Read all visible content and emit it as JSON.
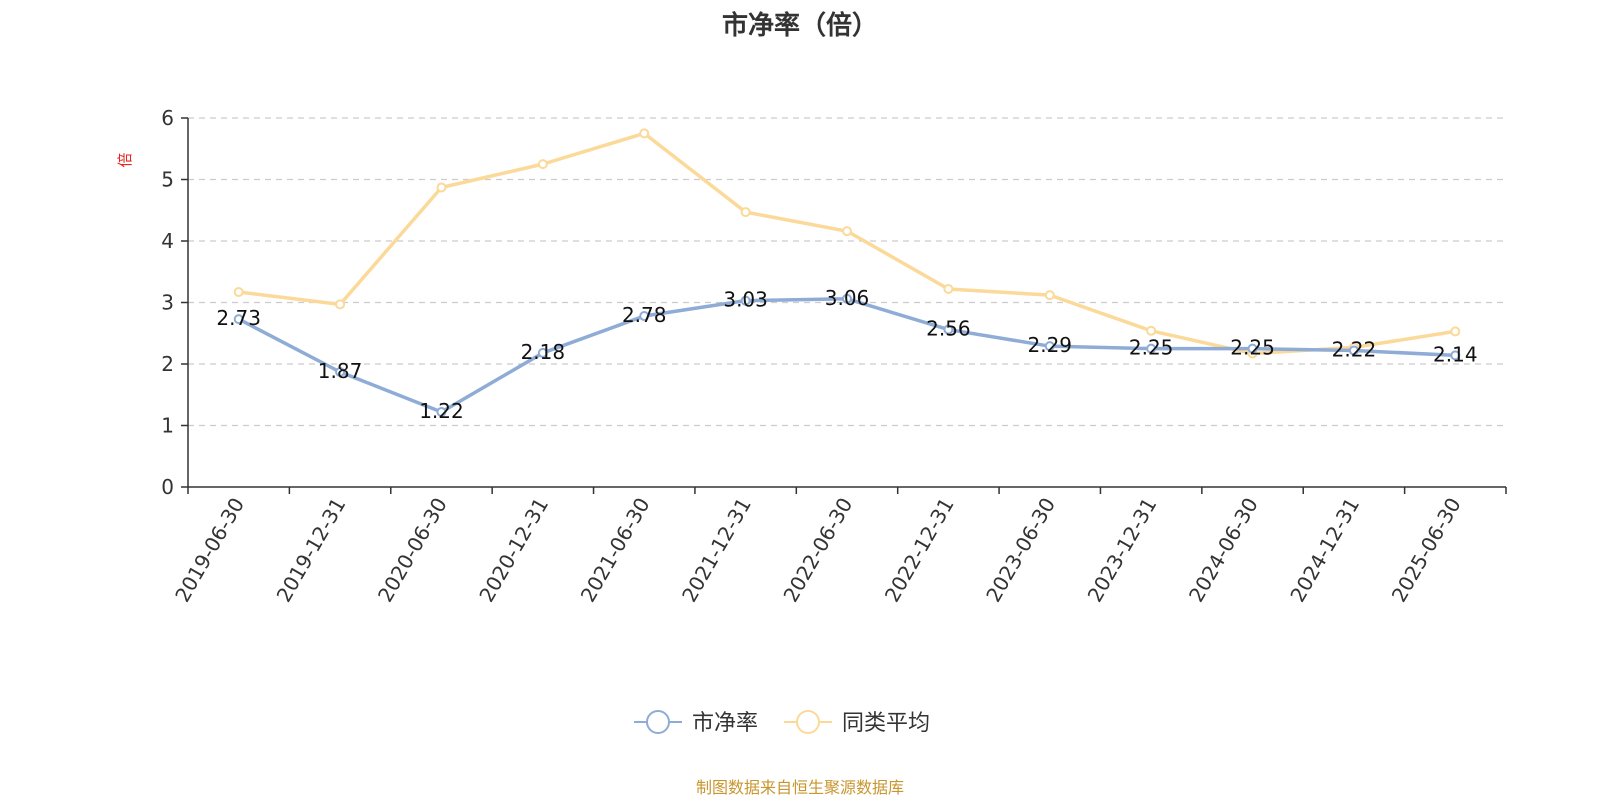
{
  "chart_data": {
    "type": "line",
    "title": "市净率（倍）",
    "ylabel": "倍",
    "ylim": [
      0,
      6
    ],
    "yticks": [
      0,
      1,
      2,
      3,
      4,
      5,
      6
    ],
    "grid": true,
    "legend_position": "bottom-center",
    "categories": [
      "2019-06-30",
      "2019-12-31",
      "2020-06-30",
      "2020-12-31",
      "2021-06-30",
      "2021-12-31",
      "2022-06-30",
      "2022-12-31",
      "2023-06-30",
      "2023-12-31",
      "2024-06-30",
      "2024-12-31",
      "2025-06-30"
    ],
    "series": [
      {
        "name": "市净率",
        "color": "#8eacd6",
        "show_labels": true,
        "values": [
          2.73,
          1.87,
          1.22,
          2.18,
          2.78,
          3.03,
          3.06,
          2.56,
          2.29,
          2.25,
          2.25,
          2.22,
          2.14
        ]
      },
      {
        "name": "同类平均",
        "color": "#fbd999",
        "show_labels": false,
        "values": [
          3.17,
          2.97,
          4.87,
          5.25,
          5.75,
          4.47,
          4.16,
          3.22,
          3.12,
          2.54,
          2.17,
          2.27,
          2.53
        ]
      }
    ],
    "source": "制图数据来自恒生聚源数据库",
    "colors": {
      "axis": "#333333",
      "grid": "#cccccc",
      "unit": "#e8231e",
      "source": "#c8962e"
    }
  }
}
